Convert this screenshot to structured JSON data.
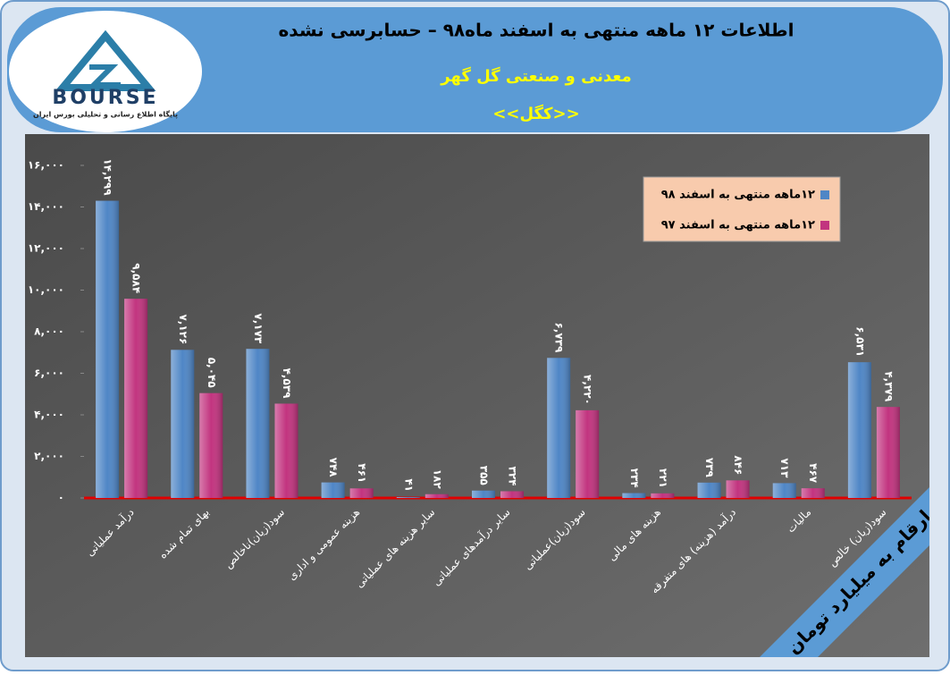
{
  "logo": {
    "name": "BOURSE",
    "tagline": "پایگاه اطلاع رسانی و تحلیلی بورس ایران"
  },
  "chart_data": {
    "type": "bar",
    "title": "اطلاعات ۱۲ ماهه منتهی به اسفند ماه۹۸ – حسابرسی نشده",
    "subtitle": "معدنی و صنعتی گل گهر",
    "ticker": "<<کگل>>",
    "unit_note": "ارقام به میلیارد تومان",
    "categories": [
      "درآمد عملیاتی",
      "بهای تمام شده",
      "سود(زیان)ناخالص",
      "هزینه عمومی و اداری",
      "سایر هزینه های عملیاتی",
      "سایر درآمدهای عملیاتی",
      "سود(زیان)عملیاتی",
      "هزینه های مالی",
      "درآمد (هزینه) های متفرقه",
      "مالیات",
      "سود(زیان) خالص"
    ],
    "series": [
      {
        "name": "۱۲ماهه منتهی به اسفند ۹۸",
        "color": "#4f86c6",
        "values": [
          14299,
          7126,
          7173,
          748,
          41,
          355,
          6739,
          234,
          739,
          713,
          6531
        ],
        "value_labels": [
          "۱۴,۲۹۹",
          "۷,۱۲۶",
          "۷,۱۷۳",
          "۷۴۸",
          "۴۱",
          "۳۵۵",
          "۶,۷۳۹",
          "۲۳۴",
          "۷۳۹",
          "۷۱۳",
          "۶,۵۳۱"
        ]
      },
      {
        "name": "۱۲ماهه منتهی به اسفند ۹۷",
        "color": "#c2347f",
        "values": [
          9584,
          5045,
          4539,
          461,
          182,
          324,
          4220,
          221,
          846,
          467,
          4379
        ],
        "value_labels": [
          "۹,۵۸۴",
          "۵,۰۴۵",
          "۴,۵۳۹",
          "۴۶۱",
          "۱۸۲",
          "۳۲۴",
          "۴,۲۲۰",
          "۲۲۱",
          "۸۴۶",
          "۴۶۷",
          "۴,۳۷۹"
        ]
      }
    ],
    "ylim": [
      0,
      16000
    ],
    "yticks": [
      {
        "value": 0,
        "label": "۰"
      },
      {
        "value": 2000,
        "label": "۲,۰۰۰"
      },
      {
        "value": 4000,
        "label": "۴,۰۰۰"
      },
      {
        "value": 6000,
        "label": "۶,۰۰۰"
      },
      {
        "value": 8000,
        "label": "۸,۰۰۰"
      },
      {
        "value": 10000,
        "label": "۱۰,۰۰۰"
      },
      {
        "value": 12000,
        "label": "۱۲,۰۰۰"
      },
      {
        "value": 14000,
        "label": "۱۴,۰۰۰"
      },
      {
        "value": 16000,
        "label": "۱۶,۰۰۰"
      }
    ],
    "grid": false,
    "legend": "top-right"
  }
}
